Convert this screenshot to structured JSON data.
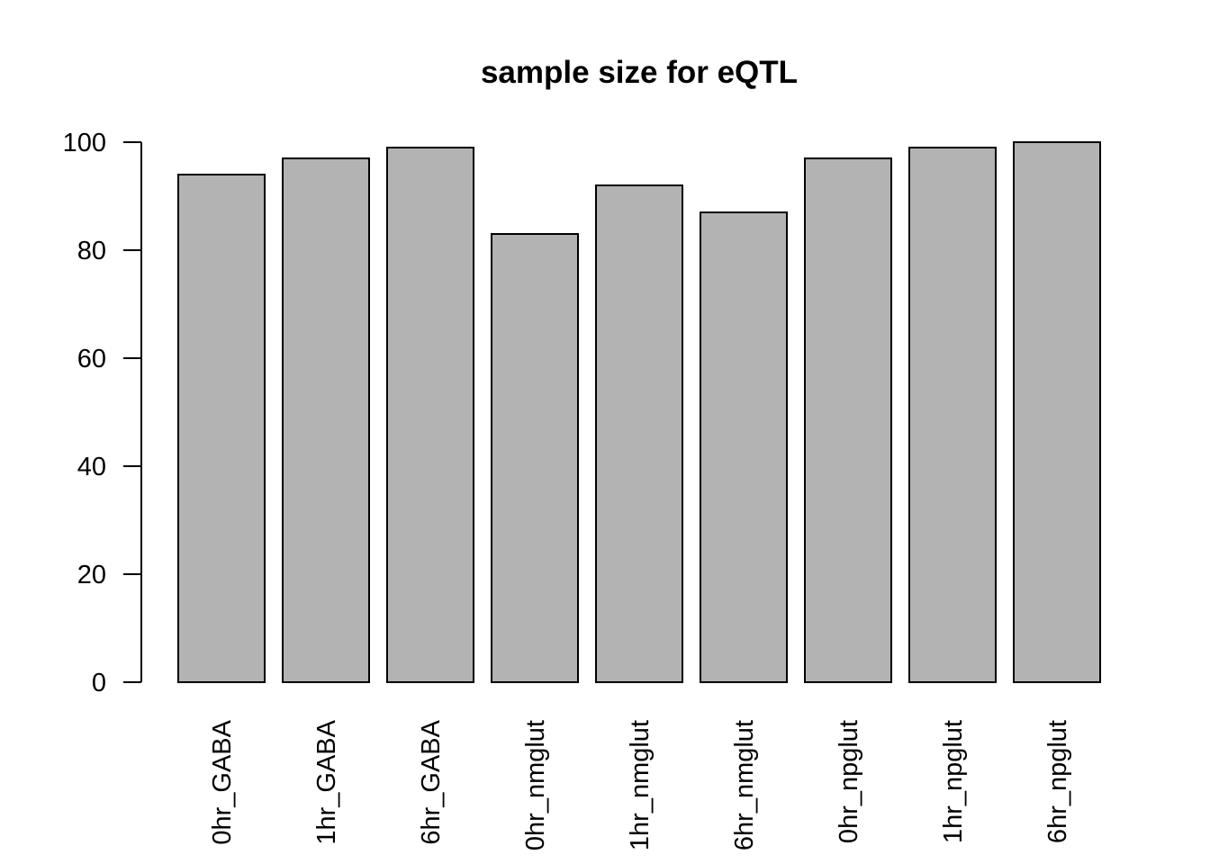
{
  "chart_data": {
    "type": "bar",
    "title": "sample size for eQTL",
    "xlabel": "",
    "ylabel": "",
    "categories": [
      "0hr_GABA",
      "1hr_GABA",
      "6hr_GABA",
      "0hr_nmglut",
      "1hr_nmglut",
      "6hr_nmglut",
      "0hr_npglut",
      "1hr_npglut",
      "6hr_npglut"
    ],
    "values": [
      94,
      97,
      99,
      83,
      92,
      87,
      97,
      99,
      100
    ],
    "ylim": [
      0,
      100
    ],
    "yticks": [
      0,
      20,
      40,
      60,
      80,
      100
    ],
    "bar_color": "#b3b3b3",
    "grid": false,
    "legend": "none"
  }
}
